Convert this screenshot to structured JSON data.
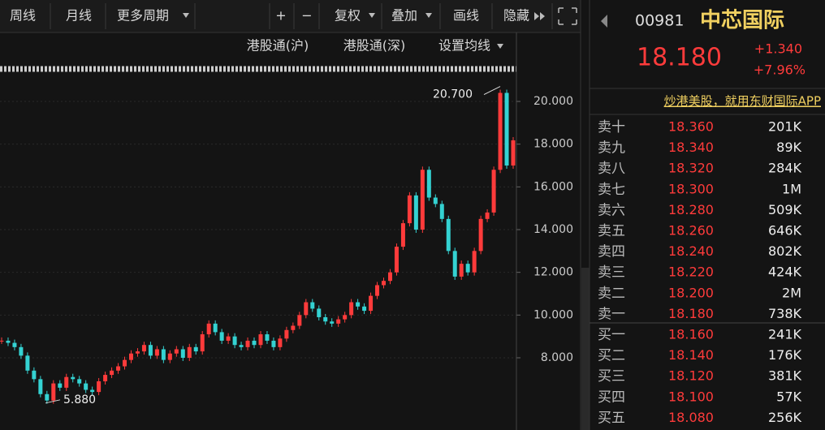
{
  "toolbar": {
    "items": [
      "周线",
      "月线",
      "更多周期",
      "+",
      "−",
      "复权",
      "叠加",
      "画线",
      "隐藏"
    ],
    "sub_items": [
      "港股通(沪)",
      "港股通(深)",
      "设置均线"
    ]
  },
  "chart_data": {
    "type": "candle",
    "color_up": "#ff3b3b",
    "color_down": "#34d2d2",
    "values": [
      8.8,
      8.7,
      8.5,
      8.1,
      7.4,
      7.0,
      6.3,
      6.0,
      6.8,
      6.6,
      7.1,
      7.0,
      6.8,
      6.5,
      6.4,
      6.9,
      7.2,
      7.4,
      7.6,
      7.9,
      8.2,
      8.3,
      8.6,
      8.1,
      8.4,
      7.9,
      8.2,
      8.4,
      8.0,
      8.5,
      8.3,
      9.1,
      9.6,
      9.2,
      8.8,
      9.0,
      8.6,
      8.5,
      8.8,
      8.6,
      9.1,
      8.8,
      8.5,
      8.9,
      9.3,
      9.5,
      10.0,
      10.6,
      10.3,
      9.9,
      9.7,
      9.6,
      9.8,
      10.0,
      10.6,
      10.4,
      10.2,
      10.9,
      11.4,
      11.6,
      12.0,
      13.2,
      14.3,
      15.6,
      14.0,
      16.8,
      15.5,
      15.2,
      14.5,
      13.0,
      11.8,
      12.4,
      12.0,
      13.0,
      14.5,
      14.8,
      16.8,
      20.4,
      17.0,
      18.18
    ],
    "ylim": [
      4.62,
      21.14
    ],
    "yticks": [
      {
        "value": 20,
        "label": "20.000"
      },
      {
        "value": 18,
        "label": "18.000"
      },
      {
        "value": 16,
        "label": "16.000"
      },
      {
        "value": 14,
        "label": "14.000"
      },
      {
        "value": 12,
        "label": "12.000"
      },
      {
        "value": 10,
        "label": "10.000"
      },
      {
        "value": 8,
        "label": "8.000"
      }
    ],
    "annotations": [
      {
        "value": 20.7,
        "label": "20.700"
      },
      {
        "value": 5.88,
        "label": "5.880"
      }
    ]
  },
  "quote": {
    "code": "00981",
    "name": "中芯国际",
    "price": "18.180",
    "change": "+1.340",
    "change_pct": "+7.96%",
    "ad": "炒港美股，就用东财国际APP"
  },
  "order_book": {
    "asks": [
      [
        "卖十",
        "18.360",
        "201K"
      ],
      [
        "卖九",
        "18.340",
        "89K"
      ],
      [
        "卖八",
        "18.320",
        "284K"
      ],
      [
        "卖七",
        "18.300",
        "1M"
      ],
      [
        "卖六",
        "18.280",
        "509K"
      ],
      [
        "卖五",
        "18.260",
        "646K"
      ],
      [
        "卖四",
        "18.240",
        "802K"
      ],
      [
        "卖三",
        "18.220",
        "424K"
      ],
      [
        "卖二",
        "18.200",
        "2M"
      ],
      [
        "卖一",
        "18.180",
        "738K"
      ]
    ],
    "bids": [
      [
        "买一",
        "18.160",
        "241K"
      ],
      [
        "买二",
        "18.140",
        "176K"
      ],
      [
        "买三",
        "18.120",
        "381K"
      ],
      [
        "买四",
        "18.100",
        "57K"
      ],
      [
        "买五",
        "18.080",
        "256K"
      ]
    ]
  }
}
